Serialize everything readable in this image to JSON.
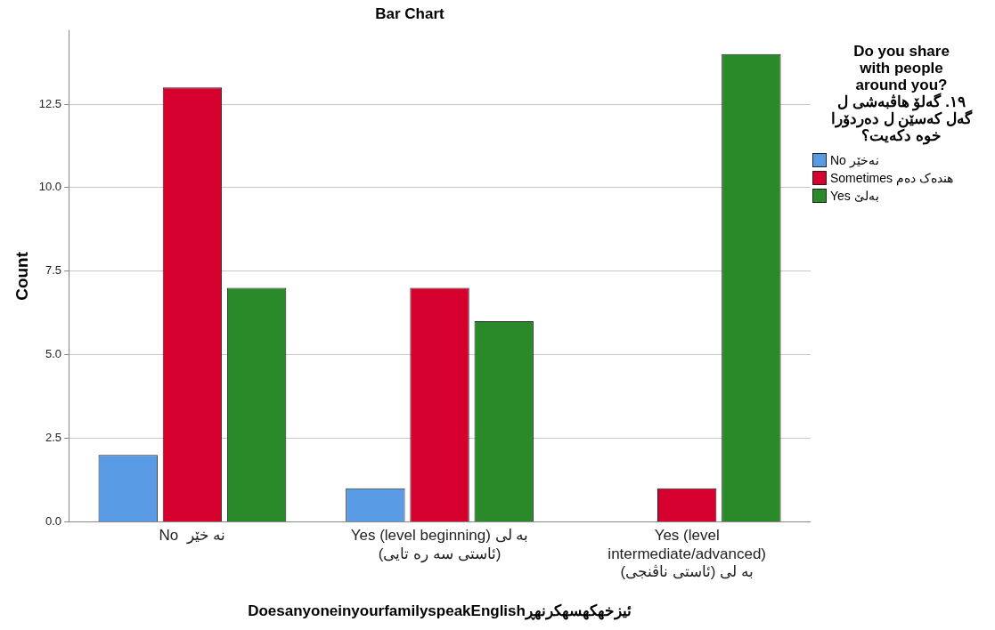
{
  "chart_data": {
    "type": "bar",
    "title": "Bar Chart",
    "xlabel": "DoesanyoneinyourfamilyspeakEnglishئیزخهکهسهکرنهڕ",
    "ylabel": "Count",
    "legend_title": "Do you share\nwith people\naround you?\n١٩. گەلۆ هاڤبەشی ل\nگەل کەسێن ل دەردۆرا\nخوە دکەیت؟",
    "categories": [
      "No  نه خێر",
      "Yes (level beginning) به لی\n(ئاستی سه ره تایی)",
      "Yes (level\nintermediate/advanced)\nبه لی (ئاستی ناڤنجی)"
    ],
    "series": [
      {
        "name": "No نەخێر",
        "color": "#5a9be6",
        "values": [
          2,
          1,
          null
        ]
      },
      {
        "name": "Sometimes هندەک دەم",
        "color": "#d6002e",
        "values": [
          13,
          7,
          1
        ]
      },
      {
        "name": "Yes  بەلێ",
        "color": "#2a8a2a",
        "values": [
          7,
          6,
          14
        ]
      }
    ],
    "ylim": [
      0,
      14.7
    ],
    "yticks": [
      {
        "value": 0,
        "label": "0.0"
      },
      {
        "value": 2.5,
        "label": "2.5"
      },
      {
        "value": 5,
        "label": "5.0"
      },
      {
        "value": 7.5,
        "label": "7.5"
      },
      {
        "value": 10,
        "label": "10.0"
      },
      {
        "value": 12.5,
        "label": "12.5"
      }
    ],
    "grid": "y",
    "legend": "right"
  }
}
